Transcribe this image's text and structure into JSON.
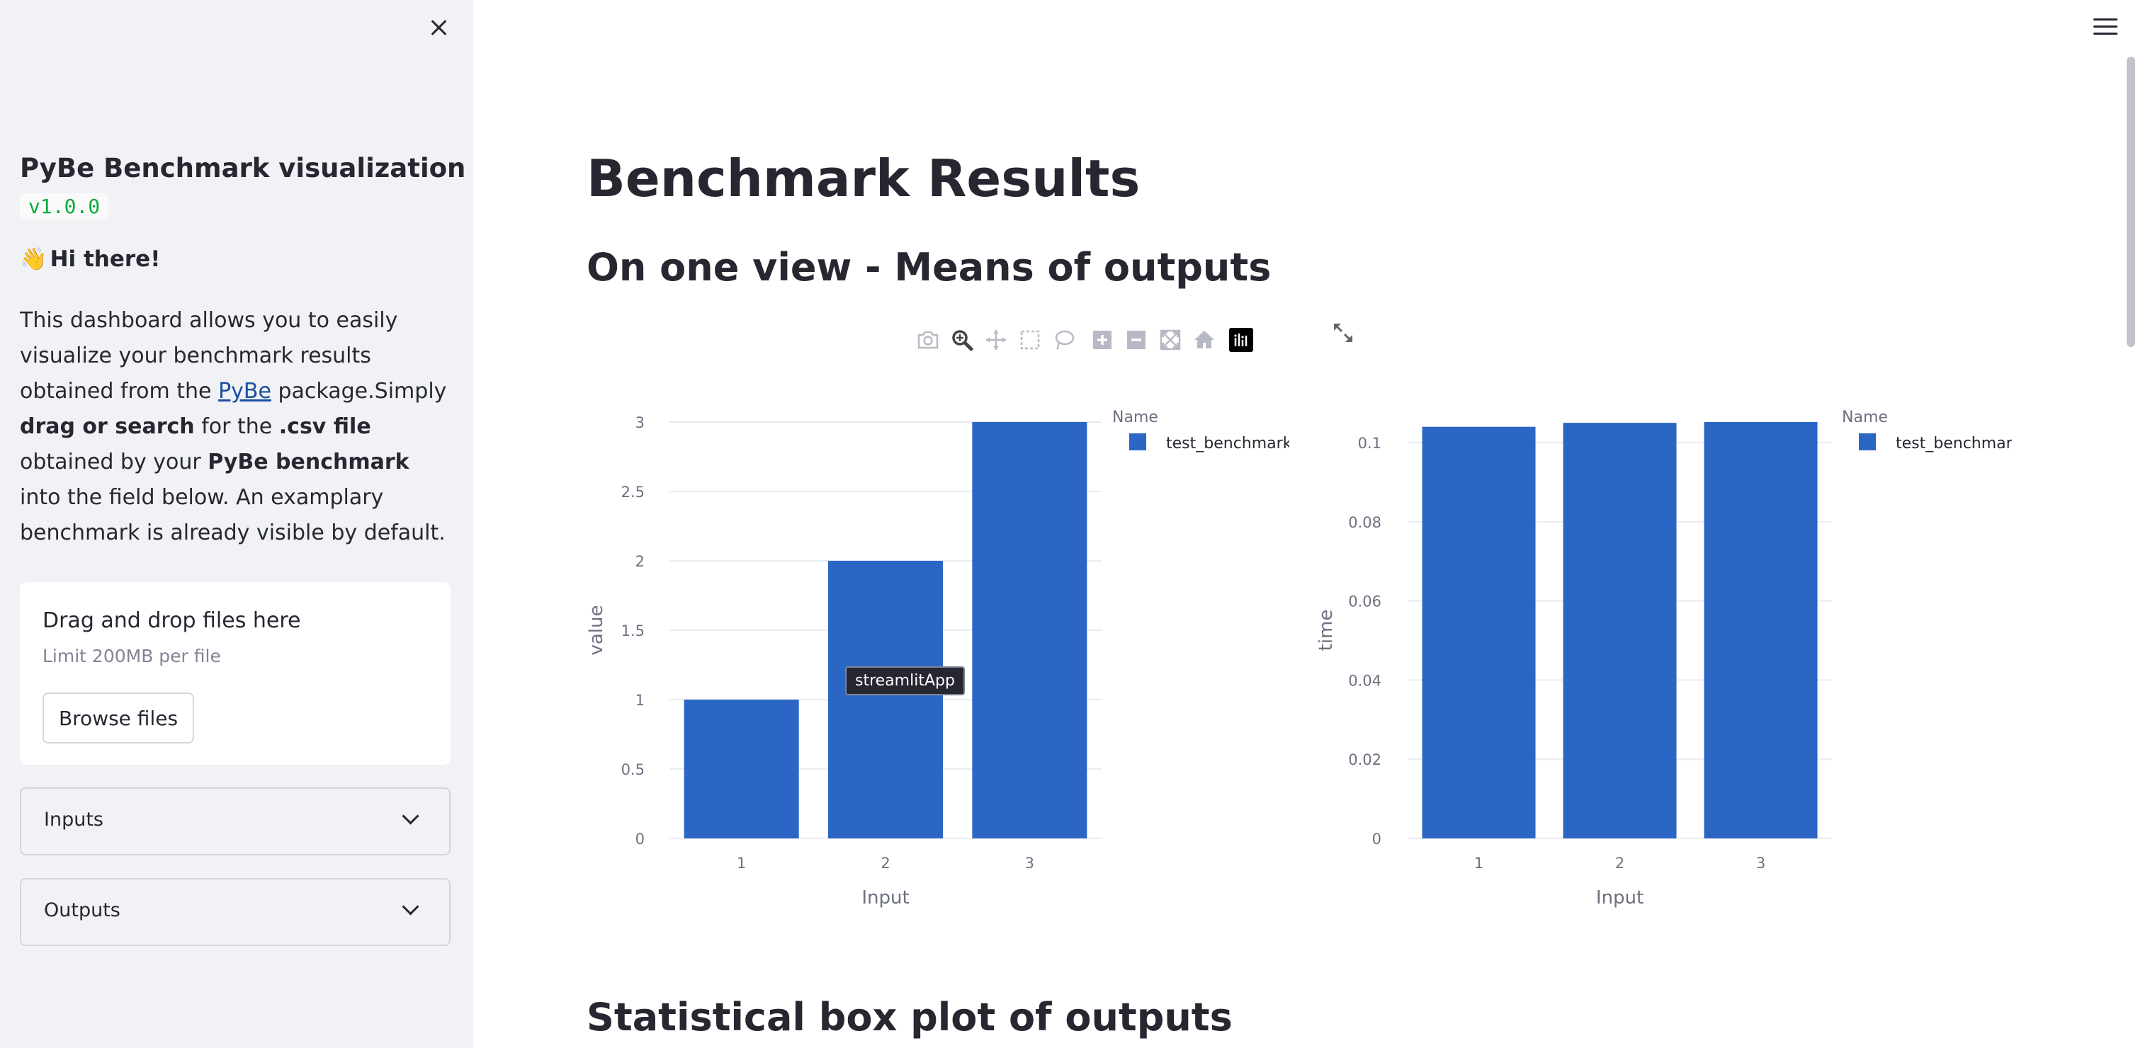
{
  "sidebar": {
    "title": "PyBe Benchmark visualization",
    "version": "v1.0.0",
    "greeting_emoji": "👋",
    "greeting": "Hi there!",
    "description": {
      "p1": "This dashboard allows you to easily visualize your benchmark results obtained from the ",
      "link": "PyBe",
      "p2": " package.Simply ",
      "b1": "drag or search",
      "p3": " for the ",
      "b2": ".csv file",
      "p4": " obtained by your ",
      "b3": "PyBe benchmark",
      "p5": " into the field below. An examplary benchmark is already visible by default."
    },
    "uploader": {
      "title": "Drag and drop files here",
      "limit": "Limit 200MB per file",
      "button": "Browse files"
    },
    "expanders": [
      "Inputs",
      "Outputs"
    ]
  },
  "main": {
    "title": "Benchmark Results",
    "section1": "On one view - Means of outputs",
    "section2": "Statistical box plot of outputs",
    "tooltip": "streamlitApp"
  },
  "modebar_icons": [
    "camera-icon",
    "zoom-icon",
    "pan-icon",
    "box-select-icon",
    "lasso-icon",
    "zoom-in-icon",
    "zoom-out-icon",
    "autoscale-icon",
    "reset-axes-icon",
    "plotly-logo-icon",
    "fullscreen-icon"
  ],
  "colors": {
    "bar": "#2b66c4",
    "grid": "#e9ebf0",
    "axis_text": "#6d7080",
    "sidebar_bg": "#f0f2f6"
  },
  "chart_data": [
    {
      "type": "bar",
      "categories": [
        "1",
        "2",
        "3"
      ],
      "series": [
        {
          "name": "test_benchmark",
          "values": [
            1,
            2,
            3
          ]
        }
      ],
      "xlabel": "Input",
      "ylabel": "value",
      "ylim": [
        0,
        3
      ],
      "yticks": [
        "0",
        "0.5",
        "1",
        "1.5",
        "2",
        "2.5",
        "3"
      ],
      "legend_title": "Name",
      "legend_position": "top-right",
      "grid": true
    },
    {
      "type": "bar",
      "categories": [
        "1",
        "2",
        "3"
      ],
      "series": [
        {
          "name": "test_benchmark",
          "values": [
            0.104,
            0.105,
            0.1052
          ]
        }
      ],
      "xlabel": "Input",
      "ylabel": "time",
      "ylim": [
        0,
        0.1052
      ],
      "yticks": [
        "0",
        "0.02",
        "0.04",
        "0.06",
        "0.08",
        "0.1"
      ],
      "legend_title": "Name",
      "legend_position": "top-right",
      "grid": true
    }
  ]
}
